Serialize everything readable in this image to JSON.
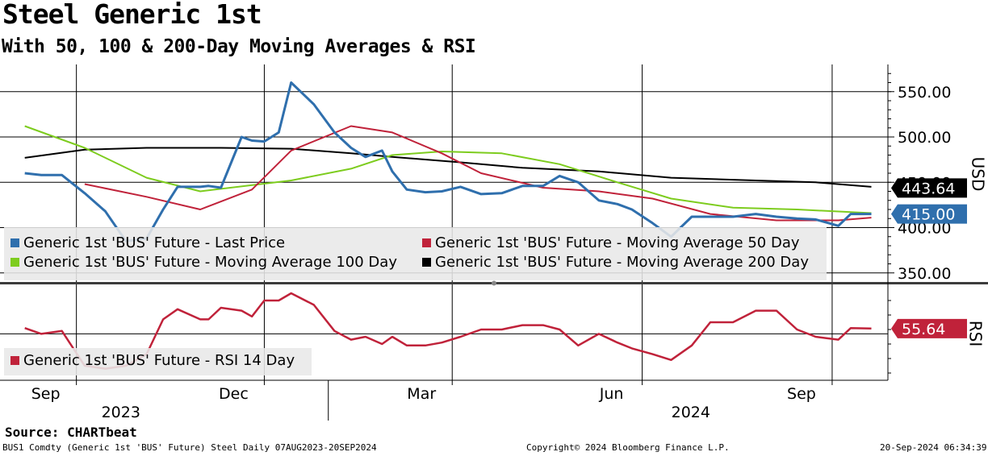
{
  "title": "Steel Generic 1st",
  "subtitle": "With 50, 100 & 200-Day Moving Averages & RSI",
  "source": "Source: CHARTbeat",
  "footer": {
    "left": "BUS1 Comdty (Generic 1st 'BUS' Future) Steel  Daily 07AUG2023-20SEP2024",
    "center": "Copyright© 2024 Bloomberg Finance L.P.",
    "right": "20-Sep-2024 06:34:39"
  },
  "colors": {
    "last_price": "#2f6fad",
    "ma50": "#c0223a",
    "ma100": "#7dcc1e",
    "ma200": "#000000",
    "rsi": "#c0223a"
  },
  "chart_data": [
    {
      "type": "line",
      "panel": "price",
      "ylabel": "USD",
      "ylim": [
        340,
        580
      ],
      "yticks": [
        "550.00",
        "500.00",
        "450.00",
        "400.00",
        "350.00"
      ],
      "xticks": [
        "Sep",
        "Dec",
        "Mar",
        "Jun",
        "Sep"
      ],
      "year_labels": [
        "2023",
        "2024"
      ],
      "legend_placement": "bottom-left",
      "last_value_labels": [
        "443.64",
        "415.00"
      ],
      "series": [
        {
          "name": "Generic 1st 'BUS' Future - Last Price",
          "x": [
            "2023-08-07",
            "2023-08-15",
            "2023-08-25",
            "2023-09-05",
            "2023-09-15",
            "2023-09-25",
            "2023-10-05",
            "2023-10-13",
            "2023-10-20",
            "2023-10-31",
            "2023-11-04",
            "2023-11-10",
            "2023-11-20",
            "2023-11-25",
            "2023-12-01",
            "2023-12-08",
            "2023-12-14",
            "2023-12-25",
            "2024-01-04",
            "2024-01-12",
            "2024-01-19",
            "2024-01-27",
            "2024-02-01",
            "2024-02-08",
            "2024-02-17",
            "2024-02-25",
            "2024-03-05",
            "2024-03-15",
            "2024-03-25",
            "2024-04-04",
            "2024-04-14",
            "2024-04-22",
            "2024-05-01",
            "2024-05-11",
            "2024-05-20",
            "2024-05-27",
            "2024-06-06",
            "2024-06-15",
            "2024-06-25",
            "2024-07-04",
            "2024-07-15",
            "2024-07-26",
            "2024-08-05",
            "2024-08-15",
            "2024-08-24",
            "2024-09-04",
            "2024-09-10",
            "2024-09-20"
          ],
          "values": [
            460,
            458,
            458,
            438,
            418,
            385,
            388,
            420,
            445,
            445,
            446,
            444,
            500,
            496,
            495,
            505,
            560,
            536,
            505,
            488,
            478,
            485,
            462,
            442,
            439,
            440,
            445,
            437,
            438,
            446,
            446,
            457,
            450,
            430,
            426,
            420,
            405,
            390,
            412,
            412,
            412,
            415,
            412,
            410,
            409,
            402,
            415,
            415
          ]
        },
        {
          "name": "Generic 1st 'BUS' Future - Moving Average 50 Day",
          "x": [
            "2023-09-05",
            "2023-10-05",
            "2023-10-31",
            "2023-11-25",
            "2023-12-14",
            "2024-01-12",
            "2024-02-01",
            "2024-02-25",
            "2024-03-15",
            "2024-04-14",
            "2024-05-11",
            "2024-06-06",
            "2024-07-04",
            "2024-08-05",
            "2024-09-04",
            "2024-09-20"
          ],
          "values": [
            448,
            434,
            420,
            442,
            485,
            512,
            505,
            482,
            460,
            444,
            440,
            432,
            415,
            408,
            408,
            411
          ]
        },
        {
          "name": "Generic 1st 'BUS' Future - Moving Average 100 Day",
          "x": [
            "2023-08-07",
            "2023-09-05",
            "2023-10-05",
            "2023-10-31",
            "2023-12-14",
            "2024-01-12",
            "2024-02-01",
            "2024-02-25",
            "2024-03-25",
            "2024-04-22",
            "2024-05-20",
            "2024-06-15",
            "2024-07-15",
            "2024-08-15",
            "2024-09-20"
          ],
          "values": [
            512,
            488,
            455,
            440,
            452,
            465,
            480,
            484,
            482,
            470,
            450,
            432,
            422,
            420,
            416
          ]
        },
        {
          "name": "Generic 1st 'BUS' Future - Moving Average 200 Day",
          "x": [
            "2023-08-07",
            "2023-09-05",
            "2023-10-05",
            "2023-11-10",
            "2023-12-14",
            "2024-01-12",
            "2024-02-01",
            "2024-03-05",
            "2024-04-04",
            "2024-05-11",
            "2024-06-15",
            "2024-07-26",
            "2024-08-24",
            "2024-09-20"
          ],
          "values": [
            477,
            486,
            488,
            488,
            487,
            482,
            478,
            472,
            466,
            462,
            455,
            452,
            450,
            445
          ]
        }
      ]
    },
    {
      "type": "line",
      "panel": "rsi",
      "ylabel": "RSI",
      "ylim": [
        20,
        85
      ],
      "last_value_label": "55.64",
      "legend_placement": "bottom-left",
      "series": [
        {
          "name": "Generic 1st 'BUS' Future - RSI 14 Day",
          "x": [
            "2023-08-07",
            "2023-08-15",
            "2023-08-25",
            "2023-09-05",
            "2023-09-15",
            "2023-09-25",
            "2023-10-05",
            "2023-10-13",
            "2023-10-20",
            "2023-10-31",
            "2023-11-04",
            "2023-11-10",
            "2023-11-20",
            "2023-11-25",
            "2023-12-01",
            "2023-12-08",
            "2023-12-14",
            "2023-12-25",
            "2024-01-04",
            "2024-01-12",
            "2024-01-19",
            "2024-01-27",
            "2024-02-01",
            "2024-02-08",
            "2024-02-17",
            "2024-02-25",
            "2024-03-05",
            "2024-03-15",
            "2024-03-25",
            "2024-04-04",
            "2024-04-14",
            "2024-04-22",
            "2024-05-01",
            "2024-05-11",
            "2024-05-20",
            "2024-05-27",
            "2024-06-06",
            "2024-06-15",
            "2024-06-25",
            "2024-07-04",
            "2024-07-15",
            "2024-07-26",
            "2024-08-05",
            "2024-08-15",
            "2024-08-24",
            "2024-09-04",
            "2024-09-10",
            "2024-09-20"
          ],
          "values": [
            56,
            52,
            54,
            30,
            28,
            30,
            38,
            62,
            69,
            62,
            62,
            70,
            68,
            64,
            75,
            75,
            80,
            72,
            54,
            48,
            50,
            45,
            50,
            44,
            44,
            46,
            50,
            55,
            55,
            58,
            58,
            55,
            44,
            52,
            46,
            42,
            38,
            34,
            44,
            60,
            60,
            68,
            68,
            55,
            50,
            48,
            56,
            55.64
          ]
        }
      ]
    }
  ]
}
